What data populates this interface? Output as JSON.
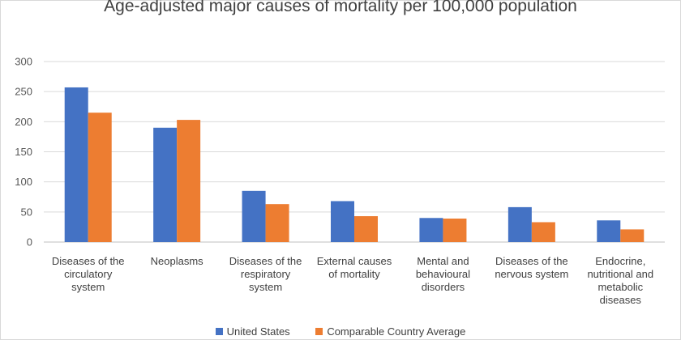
{
  "chart_data": {
    "type": "bar",
    "title": "Age-adjusted major causes of mortality per 100,000 population",
    "xlabel": "",
    "ylabel": "",
    "ylim": [
      0,
      300
    ],
    "yticks": [
      0,
      50,
      100,
      150,
      200,
      250,
      300
    ],
    "gridlines": true,
    "legend_position": "bottom",
    "categories": [
      [
        "Diseases of the",
        "circulatory",
        "system"
      ],
      [
        "Neoplasms"
      ],
      [
        "Diseases of the",
        "respiratory",
        "system"
      ],
      [
        "External causes",
        "of mortality"
      ],
      [
        "Mental and",
        "behavioural",
        "disorders"
      ],
      [
        "Diseases of the",
        "nervous system"
      ],
      [
        "Endocrine,",
        "nutritional and",
        "metabolic",
        "diseases"
      ]
    ],
    "series": [
      {
        "name": "United States",
        "color": "#4472c4",
        "values": [
          257,
          190,
          85,
          68,
          40,
          58,
          36
        ]
      },
      {
        "name": "Comparable Country Average",
        "color": "#ed7d31",
        "values": [
          215,
          203,
          63,
          43,
          39,
          33,
          21
        ]
      }
    ]
  }
}
